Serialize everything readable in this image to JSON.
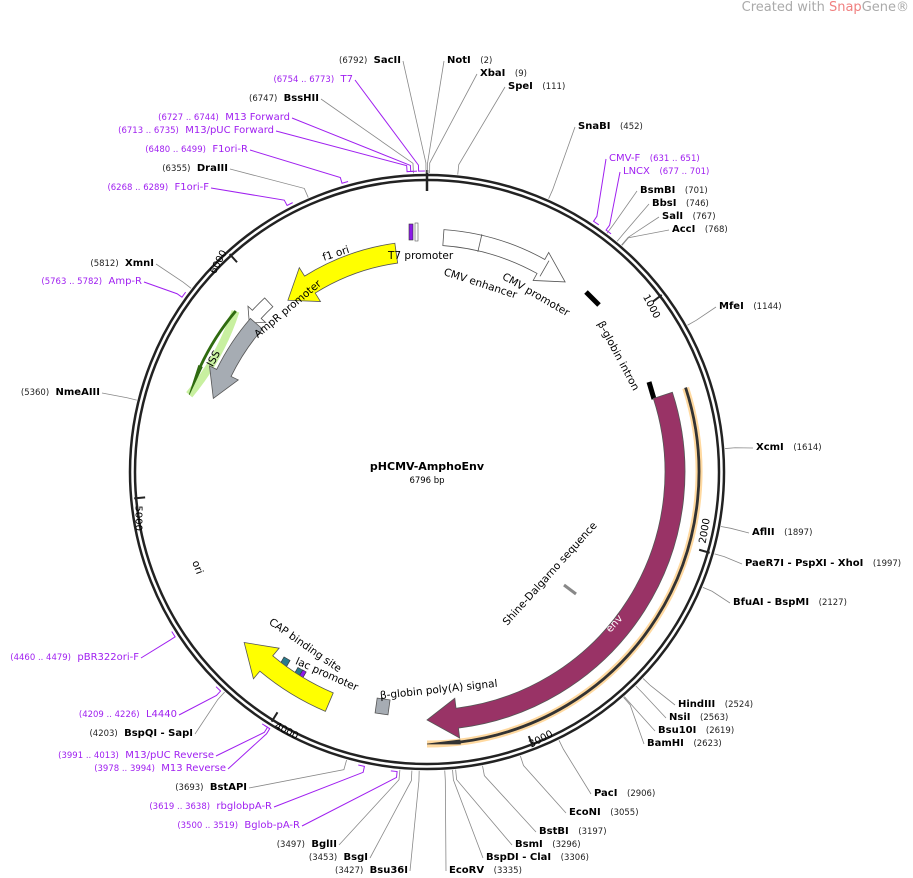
{
  "watermark": {
    "prefix": "Created with ",
    "brand_a": "Snap",
    "brand_b": "Gene",
    "suffix": "®"
  },
  "plasmid": {
    "name": "pHCMV-AmphoEnv",
    "length_label": "6796 bp",
    "length": 6796
  },
  "ticks": [
    "1000",
    "2000",
    "3000",
    "4000",
    "5000",
    "6000"
  ],
  "enzymes": [
    {
      "name": "NotI",
      "pos": "(2)"
    },
    {
      "name": "XbaI",
      "pos": "(9)"
    },
    {
      "name": "SpeI",
      "pos": "(111)"
    },
    {
      "name": "SnaBI",
      "pos": "(452)"
    },
    {
      "name": "BsmBI",
      "pos": "(701)"
    },
    {
      "name": "BbsI",
      "pos": "(746)"
    },
    {
      "name": "SalI",
      "pos": "(767)"
    },
    {
      "name": "AccI",
      "pos": "(768)"
    },
    {
      "name": "MfeI",
      "pos": "(1144)"
    },
    {
      "name": "XcmI",
      "pos": "(1614)"
    },
    {
      "name": "AflII",
      "pos": "(1897)"
    },
    {
      "name": "PaeR7I  - PspXI  - XhoI",
      "pos": "(1997)"
    },
    {
      "name": "BfuAI  - BspMI",
      "pos": "(2127)"
    },
    {
      "name": "HindIII",
      "pos": "(2524)"
    },
    {
      "name": "NsiI",
      "pos": "(2563)"
    },
    {
      "name": "Bsu10I",
      "pos": "(2619)"
    },
    {
      "name": "BamHI",
      "pos": "(2623)"
    },
    {
      "name": "PacI",
      "pos": "(2906)"
    },
    {
      "name": "EcoNI",
      "pos": "(3055)"
    },
    {
      "name": "BstBI",
      "pos": "(3197)"
    },
    {
      "name": "BsmI",
      "pos": "(3296)"
    },
    {
      "name": "BspDI  - ClaI",
      "pos": "(3306)"
    },
    {
      "name": "EcoRV",
      "pos": "(3335)"
    },
    {
      "name": "SacII",
      "pos": "(6792)"
    },
    {
      "name": "BssHII",
      "pos": "(6747)"
    },
    {
      "name": "DraIII",
      "pos": "(6355)"
    },
    {
      "name": "XmnI",
      "pos": "(5812)"
    },
    {
      "name": "NmeAIII",
      "pos": "(5360)"
    },
    {
      "name": "BspQI  - SapI",
      "pos": "(4203)"
    },
    {
      "name": "BstAPI",
      "pos": "(3693)"
    },
    {
      "name": "BglII",
      "pos": "(3497)"
    },
    {
      "name": "BsgI",
      "pos": "(3453)"
    },
    {
      "name": "Bsu36I",
      "pos": "(3427)"
    }
  ],
  "primers": [
    {
      "name": "CMV-F",
      "range": "(631 .. 651)"
    },
    {
      "name": "LNCX",
      "range": "(677 .. 701)"
    },
    {
      "name": "T7",
      "range": "(6754 .. 6773)"
    },
    {
      "name": "M13 Forward",
      "range": "(6727 .. 6744)"
    },
    {
      "name": "M13/pUC Forward",
      "range": "(6713 .. 6735)"
    },
    {
      "name": "F1ori-R",
      "range": "(6480 .. 6499)"
    },
    {
      "name": "F1ori-F",
      "range": "(6268 .. 6289)"
    },
    {
      "name": "Amp-R",
      "range": "(5763 .. 5782)"
    },
    {
      "name": "pBR322ori-F",
      "range": "(4460 .. 4479)"
    },
    {
      "name": "L4440",
      "range": "(4209 .. 4226)"
    },
    {
      "name": "M13/pUC Reverse",
      "range": "(3991 .. 4013)"
    },
    {
      "name": "M13 Reverse",
      "range": "(3978 .. 3994)"
    },
    {
      "name": "rbglobpA-R",
      "range": "(3619 .. 3638)"
    },
    {
      "name": "Bglob-pA-R",
      "range": "(3500 .. 3519)"
    }
  ],
  "features": [
    {
      "name": "f1 ori",
      "color": "#ffff00"
    },
    {
      "name": "AmpR promoter",
      "color": "#ffffff"
    },
    {
      "name": "ISS",
      "color": "#a6acb3"
    },
    {
      "name": "T7 promoter",
      "color": "#8c1ae8"
    },
    {
      "name": "CMV enhancer",
      "color": "#ffffff"
    },
    {
      "name": "CMV promoter",
      "color": "#ffffff"
    },
    {
      "name": "β-globin intron",
      "color": "#000000"
    },
    {
      "name": "env",
      "color": "#993366"
    },
    {
      "name": "Shine-Dalgarno sequence",
      "color": "#888888"
    },
    {
      "name": "β-globin poly(A) signal",
      "color": "#a6acb3"
    },
    {
      "name": "lac promoter",
      "color": "#8c1ae8"
    },
    {
      "name": "CAP binding site",
      "color": "#2a7a8c"
    },
    {
      "name": "ori",
      "color": "#ffff00"
    }
  ]
}
